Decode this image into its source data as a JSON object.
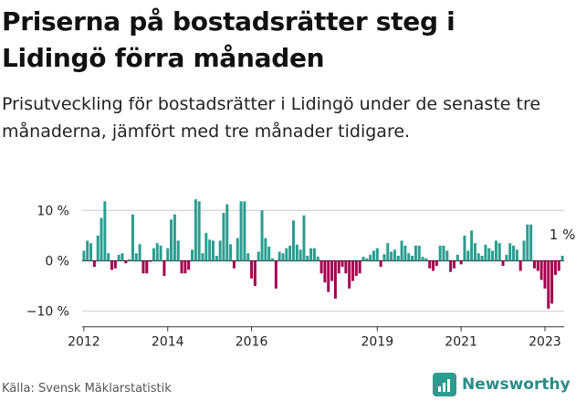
{
  "title": "Priserna på bostadsrätter steg i Lidingö förra månaden",
  "subtitle": "Prisutveckling för bostadsrätter i Lidingö under de senaste tre månaderna, jämfört med tre månader tidigare.",
  "source": "Källa: Svensk Mäklarstatistik",
  "brand": "Newsworthy",
  "colors": {
    "positive": "#2a9d8f",
    "negative": "#a3004f",
    "grid": "#cccccc",
    "zero": "#333333"
  },
  "chart_data": {
    "type": "bar",
    "title": "Priserna på bostadsrätter steg i Lidingö förra månaden",
    "xlabel": "",
    "ylabel": "",
    "ylim": [
      -12,
      12.5
    ],
    "y_ticks": [
      10,
      0,
      -10
    ],
    "y_tick_labels": [
      "10 %",
      "0 %",
      "−10 %"
    ],
    "x_ticks": [
      "2012",
      "2014",
      "2016",
      "2019",
      "2021",
      "2023"
    ],
    "x_start": "2012-01",
    "x_end": "2023-03",
    "grid": true,
    "annotation": "1 %",
    "values": [
      2,
      4,
      3.5,
      -1.2,
      5,
      8.5,
      11.8,
      1.5,
      -1.8,
      -1.5,
      1.2,
      1.5,
      -0.5,
      0.3,
      9.2,
      1.5,
      3.3,
      -2.5,
      -2.5,
      -0.2,
      2.5,
      3.5,
      3,
      -3,
      2.5,
      8.2,
      9.2,
      4,
      -2.5,
      -2.5,
      -1.8,
      2.2,
      12.2,
      11.8,
      1.5,
      5.5,
      4.2,
      4,
      1,
      4,
      9.5,
      11.2,
      3.3,
      -1.5,
      4.5,
      11.8,
      11.8,
      1.5,
      -3.5,
      -5,
      1.8,
      10,
      4.5,
      2.8,
      0.5,
      -5.5,
      1.8,
      1.5,
      2.5,
      3,
      8,
      3.2,
      2.2,
      9,
      1,
      2.5,
      2.5,
      0.8,
      -2.5,
      -4.3,
      -6.2,
      -4,
      -7.5,
      -2.5,
      -1.2,
      -2.5,
      -5.5,
      -4,
      -3,
      -2.5,
      0.8,
      0.5,
      1.2,
      2,
      2.5,
      -1.2,
      1.3,
      3.5,
      1.8,
      2.2,
      1,
      4,
      3,
      1.5,
      1,
      3,
      3,
      0.8,
      0.5,
      -1.5,
      -2,
      -1,
      3,
      3,
      2,
      -2.2,
      -1.5,
      1.2,
      -0.7,
      5,
      2,
      6,
      3.5,
      1.5,
      1,
      3.2,
      2.5,
      2,
      4,
      3.5,
      -1,
      1.2,
      3.5,
      3,
      2.2,
      -2,
      4,
      7.2,
      7.2,
      -1.5,
      -2,
      -3.8,
      -5.5,
      -9.5,
      -8.5,
      -2.8,
      -2,
      1
    ]
  }
}
